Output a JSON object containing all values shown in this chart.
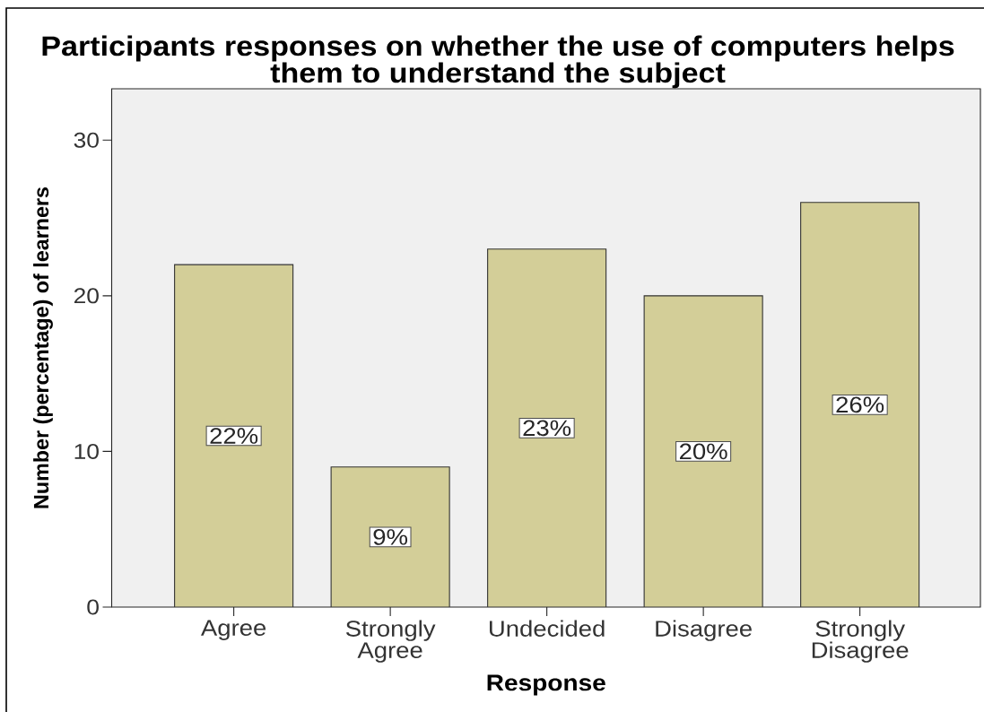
{
  "chart_data": {
    "type": "bar",
    "title": "Participants responses on whether the use of computers helps them to understand the subject",
    "xlabel": "Response",
    "ylabel": "Number (percentage) of learners",
    "categories": [
      "Agree",
      "Strongly Agree",
      "Undecided",
      "Disagree",
      "Strongly Disagree"
    ],
    "values": [
      22,
      9,
      23,
      20,
      26
    ],
    "value_labels": [
      "22%",
      "9%",
      "23%",
      "20%",
      "26%"
    ],
    "color": "#d3ce98",
    "ylim": [
      0,
      33.3
    ],
    "yticks": [
      0,
      10,
      20,
      30
    ]
  }
}
